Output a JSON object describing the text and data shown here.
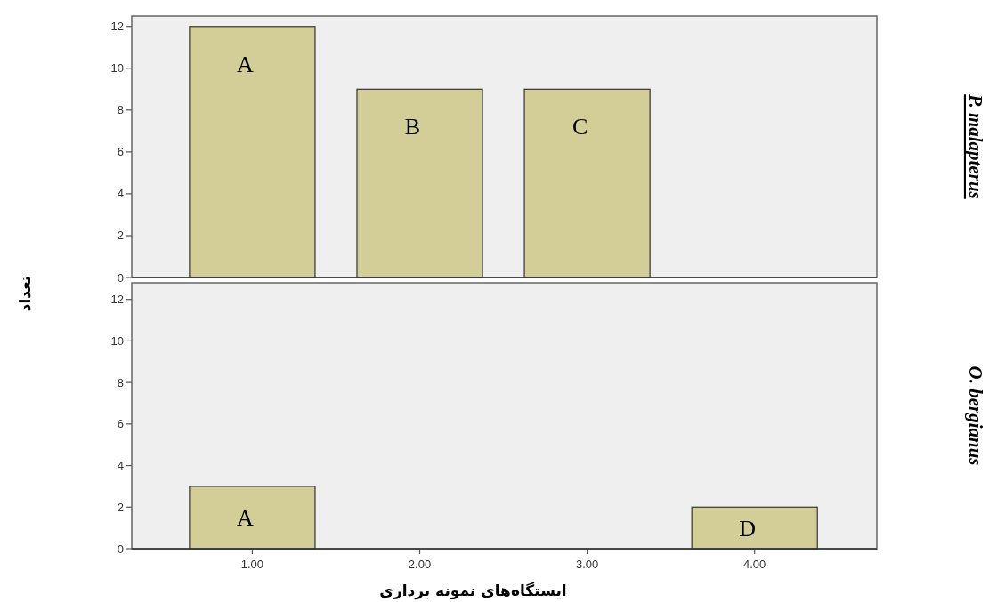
{
  "chart_data": [
    {
      "type": "bar",
      "y2label": "P. malapterus",
      "ylabel": "تعداد",
      "categories": [
        "1.00",
        "2.00",
        "3.00",
        "4.00"
      ],
      "values": [
        12,
        9,
        9,
        null
      ],
      "color": "#d3cd98",
      "ylim": [
        0,
        12.5
      ],
      "yticks": [
        0,
        2,
        4,
        6,
        8,
        10,
        12
      ],
      "tick_labels": "y",
      "annotations": [
        "A",
        "B",
        "C"
      ]
    },
    {
      "type": "bar",
      "y2label": "O. bergianus",
      "xlabel": "ایستگاه‌های نمونه برداری",
      "categories": [
        "1.00",
        "2.00",
        "3.00",
        "4.00"
      ],
      "values": [
        3,
        null,
        null,
        2
      ],
      "color": "#d3cd98",
      "ylim": [
        0,
        12.8
      ],
      "yticks": [
        0,
        2,
        4,
        6,
        8,
        10,
        12
      ],
      "annotations": [
        "A",
        "D"
      ]
    }
  ]
}
